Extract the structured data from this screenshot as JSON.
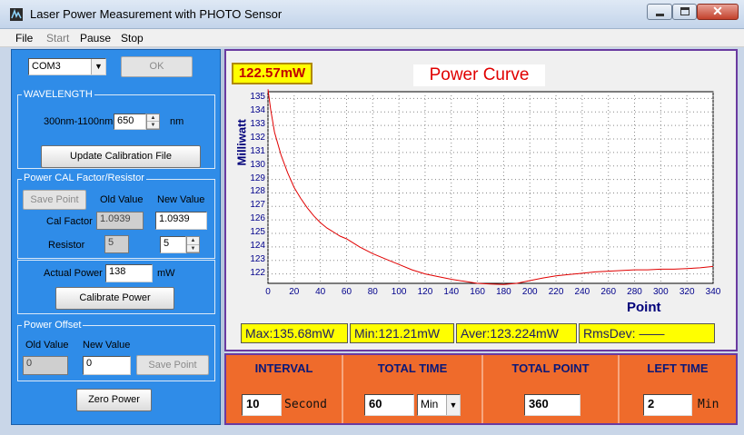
{
  "window": {
    "title": "Laser Power Measurement with PHOTO Sensor"
  },
  "menu": [
    {
      "label": "File",
      "enabled": true
    },
    {
      "label": "Start",
      "enabled": false
    },
    {
      "label": "Pause",
      "enabled": true
    },
    {
      "label": "Stop",
      "enabled": true
    }
  ],
  "port": {
    "selected": "COM3",
    "ok_label": "OK"
  },
  "wavelength": {
    "group_label": "WAVELENGTH",
    "range_label": "300nm-1100nm",
    "value": "650",
    "unit": "nm",
    "update_button": "Update Calibration File"
  },
  "power_cal": {
    "group_label": "Power CAL Factor/Resistor",
    "save_point": "Save Point",
    "old_value_header": "Old Value",
    "new_value_header": "New Value",
    "cal_factor_label": "Cal Factor",
    "cal_factor_old": "1.0939",
    "cal_factor_new": "1.0939",
    "resistor_label": "Resistor",
    "resistor_old": "5",
    "resistor_new": "5",
    "actual_power_label": "Actual Power",
    "actual_power_value": "138",
    "actual_power_unit": "mW",
    "calibrate_button": "Calibrate Power"
  },
  "power_offset": {
    "group_label": "Power Offset",
    "old_value_header": "Old Value",
    "new_value_header": "New Value",
    "old_value": "0",
    "new_value": "0",
    "save_point": "Save Point",
    "zero_button": "Zero Power"
  },
  "readout": "122.57mW",
  "stats": {
    "max": "Max:135.68mW",
    "min": "Min:121.21mW",
    "aver": "Aver:123.224mW",
    "rmsdev": "RmsDev: ——"
  },
  "controls": {
    "interval_header": "INTERVAL",
    "interval_value": "10",
    "interval_unit": "Second",
    "total_time_header": "TOTAL TIME",
    "total_time_value": "60",
    "total_time_unit": "Min",
    "total_point_header": "TOTAL POINT",
    "total_point_value": "360",
    "left_time_header": "LEFT TIME",
    "left_time_value": "2",
    "left_time_unit": "Min"
  },
  "colors": {
    "panel_blue": "#2f8ce8",
    "panel_orange": "#ef6b2b",
    "highlight_yellow": "#ffff00",
    "curve_red": "#e00000"
  },
  "chart_data": {
    "type": "line",
    "title": "Power Curve",
    "xlabel": "Point",
    "ylabel": "Milliwatt",
    "xlim": [
      0,
      340
    ],
    "ylim": [
      121.3,
      135.5
    ],
    "xticks": [
      0,
      20,
      40,
      60,
      80,
      100,
      120,
      140,
      160,
      180,
      200,
      220,
      240,
      260,
      280,
      300,
      320,
      340
    ],
    "yticks": [
      122,
      123,
      124,
      125,
      126,
      127,
      128,
      129,
      130,
      131,
      132,
      133,
      134,
      135
    ],
    "grid": true,
    "series": [
      {
        "color": "#e00000",
        "x": [
          0,
          2,
          5,
          10,
          15,
          20,
          25,
          30,
          35,
          40,
          45,
          50,
          55,
          60,
          65,
          70,
          80,
          90,
          100,
          110,
          120,
          130,
          140,
          150,
          160,
          170,
          180,
          190,
          200,
          210,
          220,
          230,
          240,
          250,
          260,
          270,
          280,
          290,
          300,
          310,
          320,
          330,
          340
        ],
        "y": [
          135.68,
          134.2,
          132.5,
          130.8,
          129.5,
          128.4,
          127.6,
          126.9,
          126.3,
          125.8,
          125.4,
          125.1,
          124.8,
          124.6,
          124.3,
          124.0,
          123.5,
          123.1,
          122.7,
          122.3,
          122.0,
          121.8,
          121.6,
          121.45,
          121.3,
          121.25,
          121.21,
          121.3,
          121.5,
          121.7,
          121.85,
          121.95,
          122.05,
          122.15,
          122.2,
          122.25,
          122.3,
          122.3,
          122.35,
          122.35,
          122.4,
          122.45,
          122.55
        ]
      }
    ]
  }
}
